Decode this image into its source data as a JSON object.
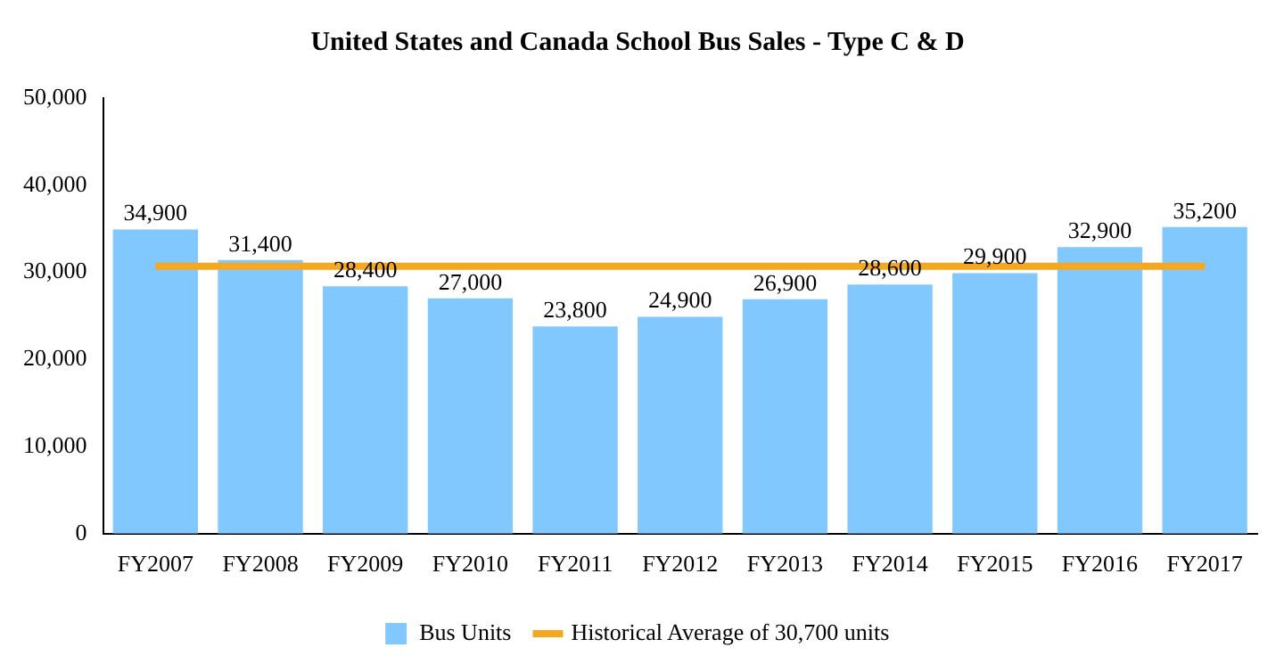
{
  "chart_data": {
    "type": "bar",
    "title": "United States and Canada School Bus Sales - Type C & D",
    "categories": [
      "FY2007",
      "FY2008",
      "FY2009",
      "FY2010",
      "FY2011",
      "FY2012",
      "FY2013",
      "FY2014",
      "FY2015",
      "FY2016",
      "FY2017"
    ],
    "series": [
      {
        "name": "Bus Units",
        "color": "#80c8ff",
        "values": [
          34900,
          31400,
          28400,
          27000,
          23800,
          24900,
          26900,
          28600,
          29900,
          32900,
          35200
        ],
        "value_labels": [
          "34,900",
          "31,400",
          "28,400",
          "27,000",
          "23,800",
          "24,900",
          "26,900",
          "28,600",
          "29,900",
          "32,900",
          "35,200"
        ]
      },
      {
        "name": "Historical Average of 30,700 units",
        "type": "line",
        "color": "#f5a81f",
        "values": [
          30700,
          30700,
          30700,
          30700,
          30700,
          30700,
          30700,
          30700,
          30700,
          30700,
          30700
        ]
      }
    ],
    "ylim": [
      0,
      50000
    ],
    "yticks": [
      0,
      {
        "value": 10000,
        "label": "10,000"
      },
      {
        "value": 20000,
        "label": "20,000"
      },
      {
        "value": 30000,
        "label": "30,000"
      },
      {
        "value": 40000,
        "label": "40,000"
      },
      {
        "value": 50000,
        "label": "50,000"
      }
    ],
    "grid": false,
    "legend": "bottom",
    "marker": "none",
    "line_style": "solid"
  }
}
